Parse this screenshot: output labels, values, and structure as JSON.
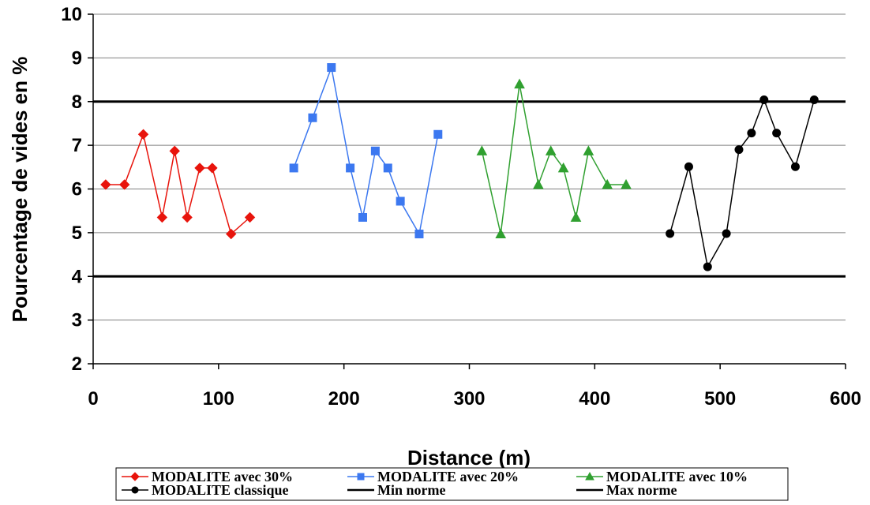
{
  "chart_data": {
    "type": "line",
    "title": "",
    "xlabel": "Distance (m)",
    "ylabel": "Pourcentage de vides en %",
    "xlim": [
      0,
      600
    ],
    "ylim": [
      2,
      10
    ],
    "x_ticks": [
      0,
      100,
      200,
      300,
      400,
      500,
      600
    ],
    "y_ticks": [
      2,
      3,
      4,
      5,
      6,
      7,
      8,
      9,
      10
    ],
    "grid": "horizontal",
    "legend_position": "bottom",
    "series": [
      {
        "name": "MODALITE  avec 30%",
        "color": "#e8140c",
        "marker": "diamond",
        "points": [
          {
            "x": 10,
            "y": 6.1
          },
          {
            "x": 25,
            "y": 6.1
          },
          {
            "x": 40,
            "y": 7.25
          },
          {
            "x": 55,
            "y": 5.35
          },
          {
            "x": 65,
            "y": 6.87
          },
          {
            "x": 75,
            "y": 5.35
          },
          {
            "x": 85,
            "y": 6.48
          },
          {
            "x": 95,
            "y": 6.48
          },
          {
            "x": 110,
            "y": 4.97
          },
          {
            "x": 125,
            "y": 5.35
          }
        ]
      },
      {
        "name": "MODALITE avec 20%",
        "color": "#3c78f0",
        "marker": "square",
        "points": [
          {
            "x": 160,
            "y": 6.48
          },
          {
            "x": 175,
            "y": 7.63
          },
          {
            "x": 190,
            "y": 8.78
          },
          {
            "x": 205,
            "y": 6.48
          },
          {
            "x": 215,
            "y": 5.35
          },
          {
            "x": 225,
            "y": 6.87
          },
          {
            "x": 235,
            "y": 6.48
          },
          {
            "x": 245,
            "y": 5.72
          },
          {
            "x": 260,
            "y": 4.97
          },
          {
            "x": 275,
            "y": 7.25
          }
        ]
      },
      {
        "name": "MODALITE avec 10%",
        "color": "#30a030",
        "marker": "triangle",
        "points": [
          {
            "x": 310,
            "y": 6.87
          },
          {
            "x": 325,
            "y": 4.97
          },
          {
            "x": 340,
            "y": 8.4
          },
          {
            "x": 355,
            "y": 6.1
          },
          {
            "x": 365,
            "y": 6.87
          },
          {
            "x": 375,
            "y": 6.48
          },
          {
            "x": 385,
            "y": 5.35
          },
          {
            "x": 395,
            "y": 6.87
          },
          {
            "x": 410,
            "y": 6.1
          },
          {
            "x": 425,
            "y": 6.1
          }
        ]
      },
      {
        "name": "MODALITE classique",
        "color": "#000000",
        "marker": "circle",
        "points": [
          {
            "x": 460,
            "y": 4.98
          },
          {
            "x": 475,
            "y": 6.51
          },
          {
            "x": 490,
            "y": 4.22
          },
          {
            "x": 505,
            "y": 4.98
          },
          {
            "x": 515,
            "y": 6.9
          },
          {
            "x": 525,
            "y": 7.28
          },
          {
            "x": 535,
            "y": 8.04
          },
          {
            "x": 545,
            "y": 7.28
          },
          {
            "x": 560,
            "y": 6.51
          },
          {
            "x": 575,
            "y": 8.04
          }
        ]
      }
    ],
    "reference_lines": [
      {
        "name": "Min norme",
        "y": 4,
        "color": "#000000"
      },
      {
        "name": "Max norme",
        "y": 8,
        "color": "#000000"
      }
    ]
  }
}
